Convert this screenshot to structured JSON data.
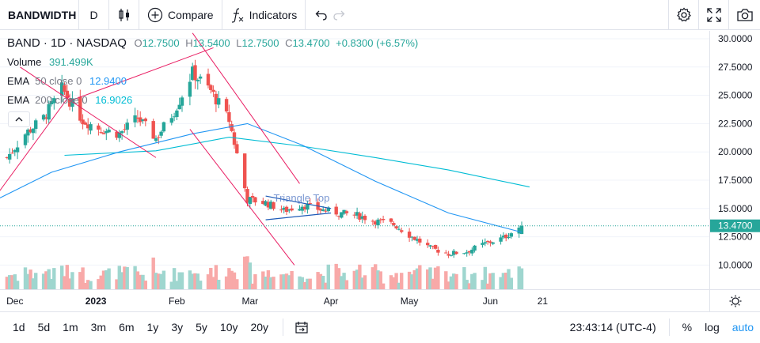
{
  "toolbar": {
    "symbol": "BANDWIDTH",
    "interval": "D",
    "compare_label": "Compare",
    "indicators_label": "Indicators"
  },
  "legend": {
    "title": "BAND · 1D · NASDAQ",
    "o_label": "O",
    "o_value": "12.7500",
    "h_label": "H",
    "h_value": "13.5400",
    "l_label": "L",
    "l_value": "12.7500",
    "c_label": "C",
    "c_value": "13.4700",
    "change": "+0.8300 (+6.57%)",
    "volume_label": "Volume",
    "volume_value": "391.499K",
    "ema50_label": "EMA",
    "ema50_params": "50 close 0",
    "ema50_value": "12.9400",
    "ema200_label": "EMA",
    "ema200_params": "200 close 0",
    "ema200_value": "16.9026"
  },
  "pattern_label": "Triangle Top",
  "price_axis": {
    "ticks": [
      "30.0000",
      "27.5000",
      "25.0000",
      "22.5000",
      "20.0000",
      "17.5000",
      "15.0000",
      "12.5000",
      "10.0000"
    ],
    "last_price": "13.4700"
  },
  "time_axis": {
    "labels": [
      "Dec",
      "2023",
      "Feb",
      "Mar",
      "Apr",
      "May",
      "Jun",
      "21"
    ]
  },
  "bottombar": {
    "ranges": [
      "1d",
      "5d",
      "1m",
      "3m",
      "6m",
      "1y",
      "3y",
      "5y",
      "10y",
      "20y"
    ],
    "clock": "23:43:14 (UTC-4)",
    "percent": "%",
    "log": "log",
    "auto": "auto"
  },
  "colors": {
    "up": "#26a69a",
    "down": "#ef5350",
    "ema50": "#2196f3",
    "ema200": "#00bcd4",
    "trendline": "#e91e63",
    "triangle": "#1e5bb8"
  },
  "chart_data": {
    "type": "candlestick",
    "x_range": [
      "2022-11-25",
      "2023-06-23"
    ],
    "ylim": [
      8.5,
      31.0
    ],
    "last_close": 13.47,
    "close_series": [
      [
        "2022-11-28",
        19.5
      ],
      [
        "2022-12-05",
        21.6
      ],
      [
        "2022-12-12",
        23.0
      ],
      [
        "2022-12-19",
        25.6
      ],
      [
        "2022-12-27",
        22.8
      ],
      [
        "2023-01-03",
        22.0
      ],
      [
        "2023-01-10",
        21.6
      ],
      [
        "2023-01-17",
        23.0
      ],
      [
        "2023-01-24",
        21.2
      ],
      [
        "2023-01-31",
        23.6
      ],
      [
        "2023-02-07",
        27.0
      ],
      [
        "2023-02-14",
        25.4
      ],
      [
        "2023-02-21",
        22.8
      ],
      [
        "2023-02-28",
        15.8
      ],
      [
        "2023-03-07",
        15.5
      ],
      [
        "2023-03-14",
        14.8
      ],
      [
        "2023-03-21",
        15.3
      ],
      [
        "2023-03-28",
        14.9
      ],
      [
        "2023-04-04",
        14.6
      ],
      [
        "2023-04-11",
        14.4
      ],
      [
        "2023-04-18",
        13.9
      ],
      [
        "2023-04-25",
        13.6
      ],
      [
        "2023-05-02",
        12.5
      ],
      [
        "2023-05-09",
        11.5
      ],
      [
        "2023-05-16",
        11.0
      ],
      [
        "2023-05-23",
        11.2
      ],
      [
        "2023-05-30",
        11.9
      ],
      [
        "2023-06-06",
        12.4
      ],
      [
        "2023-06-13",
        13.47
      ]
    ],
    "ema50": [
      [
        "2022-11-25",
        15.9
      ],
      [
        "2022-12-15",
        18.2
      ],
      [
        "2023-01-10",
        20.0
      ],
      [
        "2023-02-07",
        21.6
      ],
      [
        "2023-02-28",
        22.5
      ],
      [
        "2023-03-21",
        20.6
      ],
      [
        "2023-04-18",
        17.4
      ],
      [
        "2023-05-16",
        14.6
      ],
      [
        "2023-06-13",
        12.9
      ]
    ],
    "ema200": [
      [
        "2022-12-20",
        19.7
      ],
      [
        "2023-01-24",
        20.1
      ],
      [
        "2023-02-21",
        21.3
      ],
      [
        "2023-03-21",
        20.5
      ],
      [
        "2023-04-18",
        19.5
      ],
      [
        "2023-05-16",
        18.4
      ],
      [
        "2023-06-16",
        16.9
      ]
    ],
    "pattern": "Triangle Top"
  }
}
